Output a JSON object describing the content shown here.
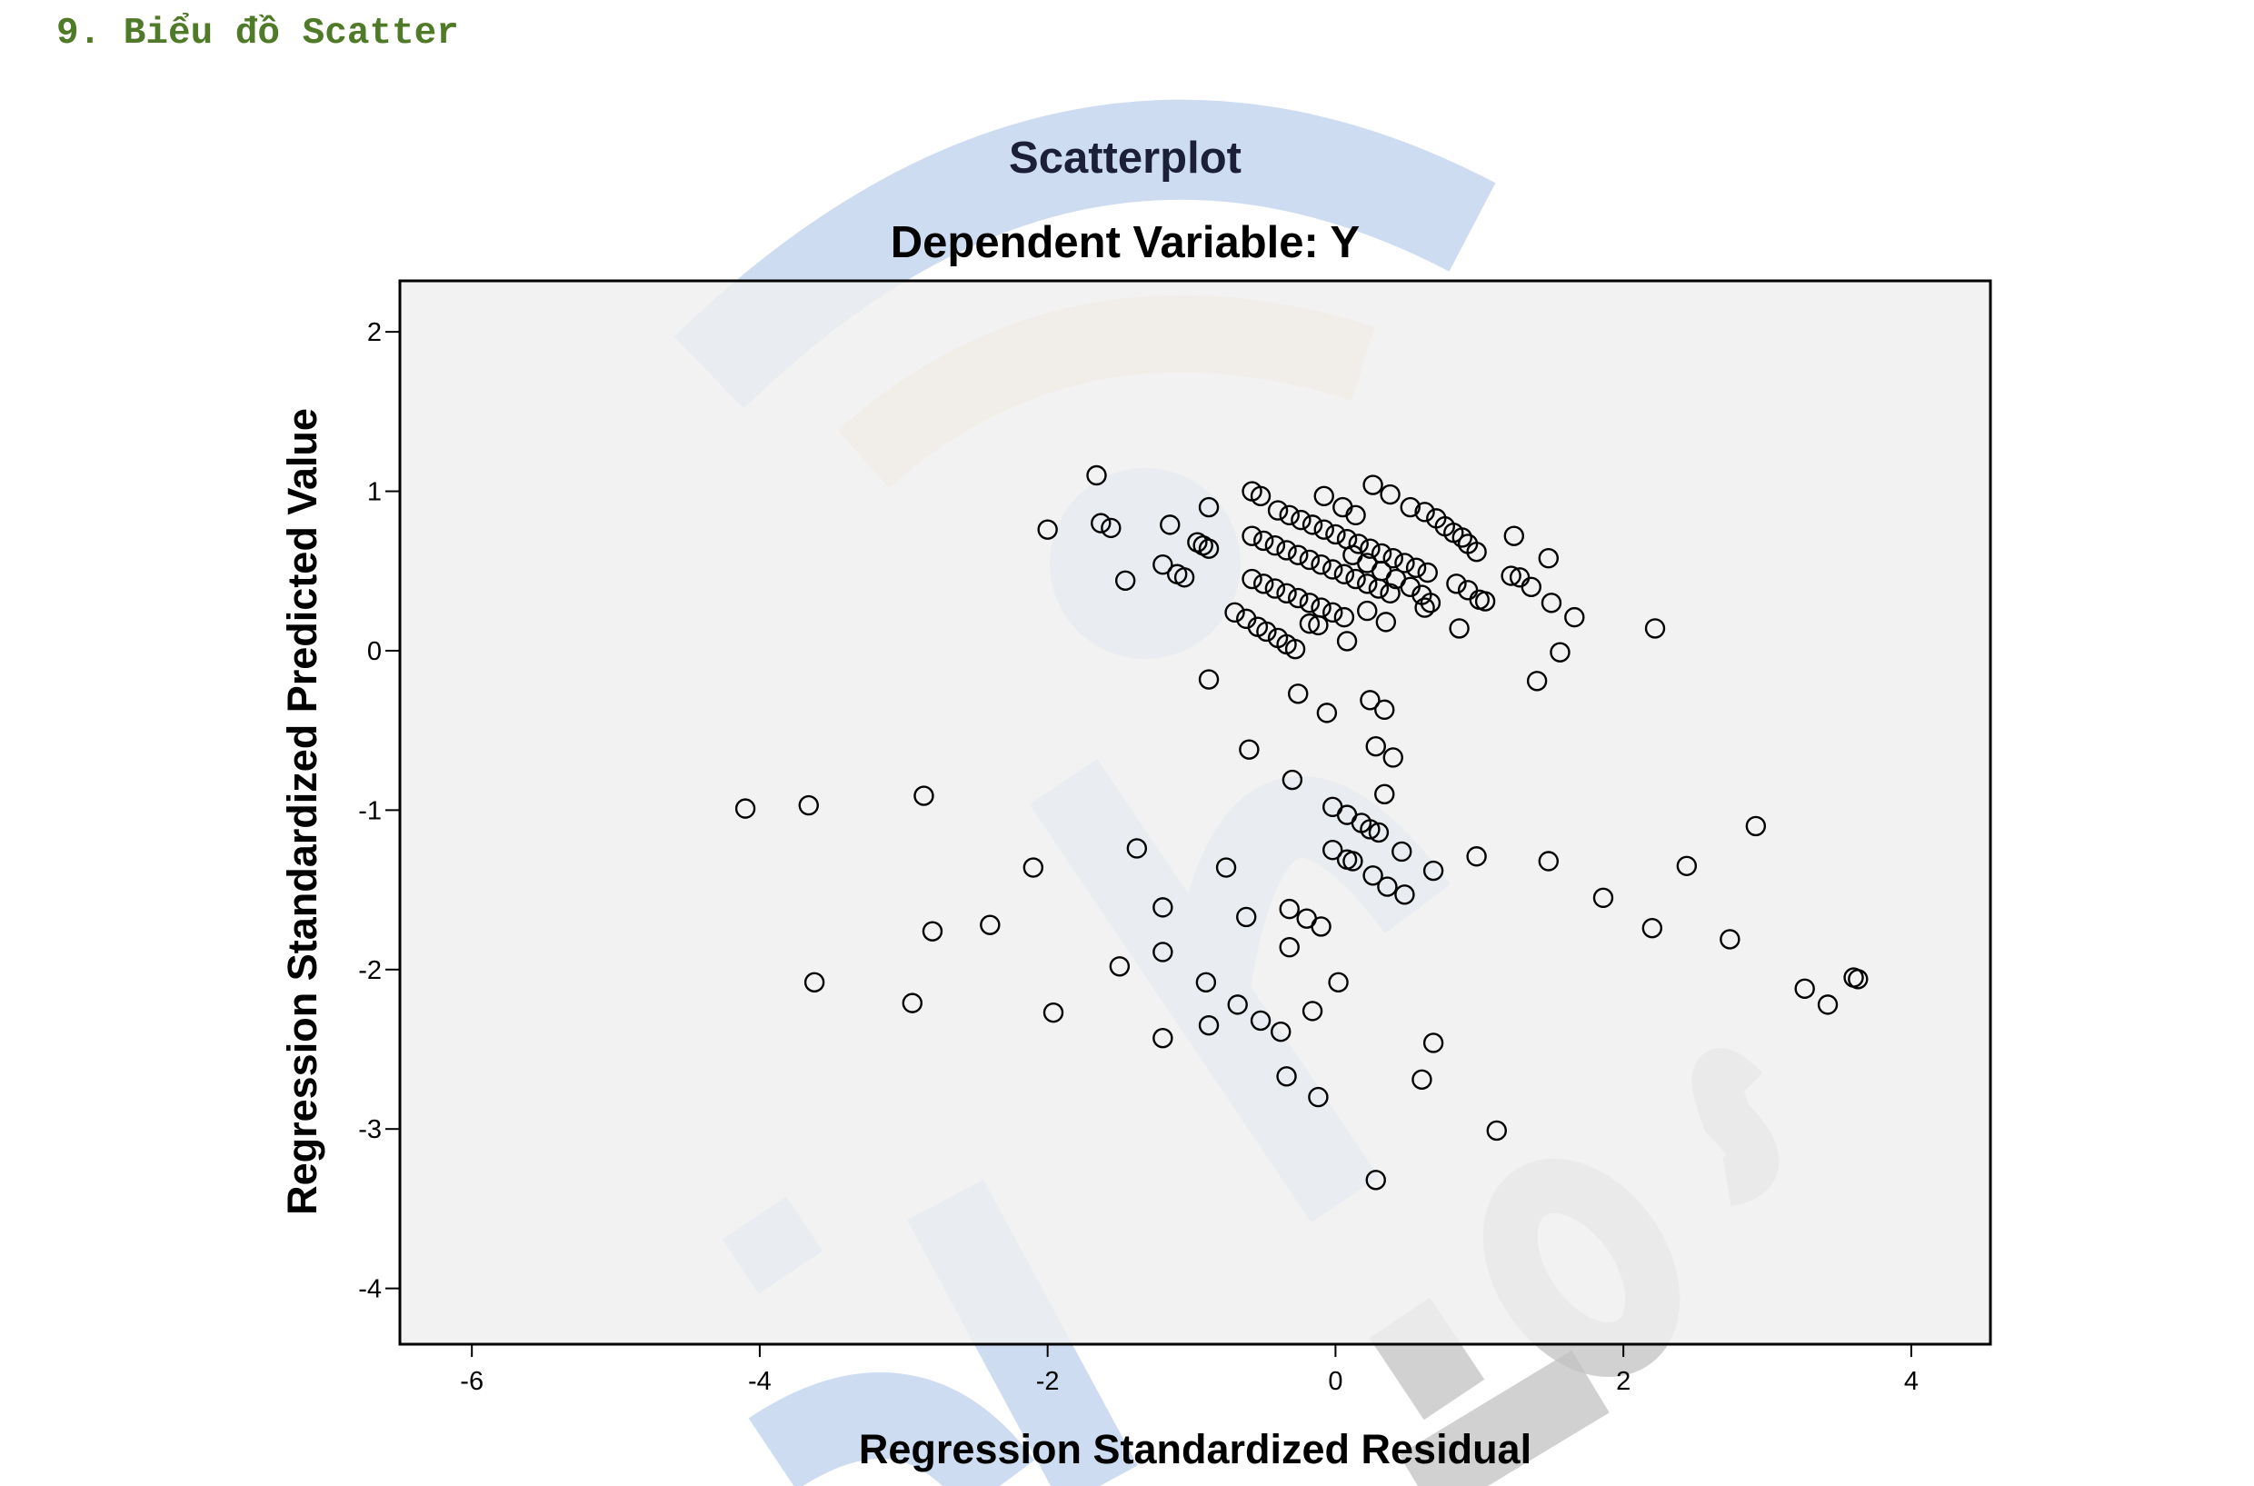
{
  "heading": "9. Biểu đồ Scatter",
  "colors": {
    "heading": "#4f7a28",
    "plot_background": "#efefef",
    "marker_stroke": "#000000",
    "watermark_blue": "#c5d6ee",
    "watermark_orange": "#f9dcc4",
    "watermark_gray": "#c2c2c2"
  },
  "chart_data": {
    "type": "scatter",
    "title": "Scatterplot",
    "subtitle": "Dependent Variable: Y",
    "xlabel": "Regression Standardized Residual",
    "ylabel": "Regression Standardized Predicted Value",
    "xlim": [
      -6.5,
      4.55
    ],
    "ylim": [
      -4.35,
      2.32
    ],
    "xticks": [
      -6,
      -4,
      -2,
      0,
      2,
      4
    ],
    "yticks": [
      2,
      1,
      0,
      -1,
      -2,
      -3,
      -4
    ],
    "grid": false,
    "marker": "open-circle",
    "points": [
      [
        -1.66,
        1.1
      ],
      [
        -2.0,
        0.76
      ],
      [
        -1.63,
        0.8
      ],
      [
        -1.56,
        0.77
      ],
      [
        -1.46,
        0.44
      ],
      [
        -1.15,
        0.79
      ],
      [
        -1.2,
        0.54
      ],
      [
        -1.1,
        0.48
      ],
      [
        -1.05,
        0.46
      ],
      [
        -0.96,
        0.68
      ],
      [
        -0.92,
        0.66
      ],
      [
        -0.88,
        0.9
      ],
      [
        -0.88,
        0.64
      ],
      [
        -0.58,
        1.0
      ],
      [
        -0.52,
        0.97
      ],
      [
        -0.4,
        0.88
      ],
      [
        -0.32,
        0.85
      ],
      [
        -0.24,
        0.82
      ],
      [
        -0.16,
        0.79
      ],
      [
        -0.08,
        0.76
      ],
      [
        0.0,
        0.73
      ],
      [
        0.08,
        0.7
      ],
      [
        0.16,
        0.67
      ],
      [
        0.24,
        0.64
      ],
      [
        0.32,
        0.61
      ],
      [
        0.4,
        0.58
      ],
      [
        0.48,
        0.55
      ],
      [
        0.56,
        0.52
      ],
      [
        0.64,
        0.49
      ],
      [
        -0.58,
        0.72
      ],
      [
        -0.5,
        0.69
      ],
      [
        -0.42,
        0.66
      ],
      [
        -0.34,
        0.63
      ],
      [
        -0.26,
        0.6
      ],
      [
        -0.18,
        0.57
      ],
      [
        -0.1,
        0.54
      ],
      [
        -0.02,
        0.51
      ],
      [
        0.06,
        0.48
      ],
      [
        0.14,
        0.45
      ],
      [
        0.22,
        0.42
      ],
      [
        0.3,
        0.39
      ],
      [
        0.38,
        0.36
      ],
      [
        -0.58,
        0.45
      ],
      [
        -0.5,
        0.42
      ],
      [
        -0.42,
        0.39
      ],
      [
        -0.34,
        0.36
      ],
      [
        -0.26,
        0.33
      ],
      [
        -0.18,
        0.3
      ],
      [
        -0.1,
        0.27
      ],
      [
        -0.02,
        0.24
      ],
      [
        0.06,
        0.21
      ],
      [
        -0.7,
        0.24
      ],
      [
        -0.62,
        0.2
      ],
      [
        -0.54,
        0.15
      ],
      [
        -0.48,
        0.12
      ],
      [
        -0.4,
        0.08
      ],
      [
        -0.34,
        0.04
      ],
      [
        -0.28,
        0.01
      ],
      [
        -0.18,
        0.17
      ],
      [
        -0.12,
        0.16
      ],
      [
        0.08,
        0.06
      ],
      [
        0.35,
        0.18
      ],
      [
        0.22,
        0.25
      ],
      [
        -0.08,
        0.97
      ],
      [
        0.05,
        0.9
      ],
      [
        0.14,
        0.85
      ],
      [
        0.26,
        1.04
      ],
      [
        0.38,
        0.98
      ],
      [
        0.52,
        0.9
      ],
      [
        0.62,
        0.87
      ],
      [
        0.7,
        0.83
      ],
      [
        0.76,
        0.78
      ],
      [
        0.82,
        0.74
      ],
      [
        0.88,
        0.71
      ],
      [
        0.92,
        0.67
      ],
      [
        0.98,
        0.62
      ],
      [
        0.12,
        0.6
      ],
      [
        0.22,
        0.55
      ],
      [
        0.32,
        0.5
      ],
      [
        0.42,
        0.45
      ],
      [
        0.52,
        0.4
      ],
      [
        0.6,
        0.35
      ],
      [
        0.66,
        0.3
      ],
      [
        0.62,
        0.27
      ],
      [
        0.84,
        0.42
      ],
      [
        0.92,
        0.38
      ],
      [
        1.0,
        0.32
      ],
      [
        1.04,
        0.31
      ],
      [
        0.86,
        0.14
      ],
      [
        1.24,
        0.72
      ],
      [
        1.22,
        0.47
      ],
      [
        1.28,
        0.46
      ],
      [
        1.36,
        0.4
      ],
      [
        1.48,
        0.58
      ],
      [
        1.5,
        0.3
      ],
      [
        1.66,
        0.21
      ],
      [
        1.56,
        -0.01
      ],
      [
        1.4,
        -0.19
      ],
      [
        2.22,
        0.14
      ],
      [
        -0.88,
        -0.18
      ],
      [
        -0.26,
        -0.27
      ],
      [
        -0.06,
        -0.39
      ],
      [
        0.24,
        -0.31
      ],
      [
        0.34,
        -0.37
      ],
      [
        0.28,
        -0.6
      ],
      [
        0.4,
        -0.67
      ],
      [
        -0.6,
        -0.62
      ],
      [
        -0.3,
        -0.81
      ],
      [
        0.34,
        -0.9
      ],
      [
        -0.02,
        -0.98
      ],
      [
        0.08,
        -1.03
      ],
      [
        0.18,
        -1.08
      ],
      [
        0.24,
        -1.12
      ],
      [
        0.3,
        -1.14
      ],
      [
        0.46,
        -1.26
      ],
      [
        0.68,
        -1.38
      ],
      [
        0.98,
        -1.29
      ],
      [
        -0.02,
        -1.25
      ],
      [
        0.08,
        -1.31
      ],
      [
        0.12,
        -1.32
      ],
      [
        0.26,
        -1.41
      ],
      [
        0.36,
        -1.48
      ],
      [
        0.48,
        -1.53
      ],
      [
        -4.1,
        -0.99
      ],
      [
        -3.66,
        -0.97
      ],
      [
        -2.86,
        -0.91
      ],
      [
        -2.1,
        -1.36
      ],
      [
        -1.38,
        -1.24
      ],
      [
        -0.76,
        -1.36
      ],
      [
        -1.2,
        -1.61
      ],
      [
        -0.62,
        -1.67
      ],
      [
        -0.32,
        -1.62
      ],
      [
        -0.2,
        -1.68
      ],
      [
        -0.1,
        -1.73
      ],
      [
        -0.32,
        -1.86
      ],
      [
        -2.8,
        -1.76
      ],
      [
        -2.4,
        -1.72
      ],
      [
        -3.62,
        -2.08
      ],
      [
        -2.94,
        -2.21
      ],
      [
        -1.96,
        -2.27
      ],
      [
        -1.5,
        -1.98
      ],
      [
        -1.2,
        -1.89
      ],
      [
        -0.9,
        -2.08
      ],
      [
        0.02,
        -2.08
      ],
      [
        -0.68,
        -2.22
      ],
      [
        -0.52,
        -2.32
      ],
      [
        -0.38,
        -2.39
      ],
      [
        -0.88,
        -2.35
      ],
      [
        -1.2,
        -2.43
      ],
      [
        -0.16,
        -2.26
      ],
      [
        0.68,
        -2.46
      ],
      [
        -0.34,
        -2.67
      ],
      [
        -0.12,
        -2.8
      ],
      [
        0.6,
        -2.69
      ],
      [
        1.12,
        -3.01
      ],
      [
        0.28,
        -3.32
      ],
      [
        1.48,
        -1.32
      ],
      [
        1.86,
        -1.55
      ],
      [
        2.44,
        -1.35
      ],
      [
        2.92,
        -1.1
      ],
      [
        2.2,
        -1.74
      ],
      [
        2.74,
        -1.81
      ],
      [
        3.26,
        -2.12
      ],
      [
        3.42,
        -2.22
      ],
      [
        3.6,
        -2.05
      ],
      [
        3.63,
        -2.06
      ]
    ]
  }
}
